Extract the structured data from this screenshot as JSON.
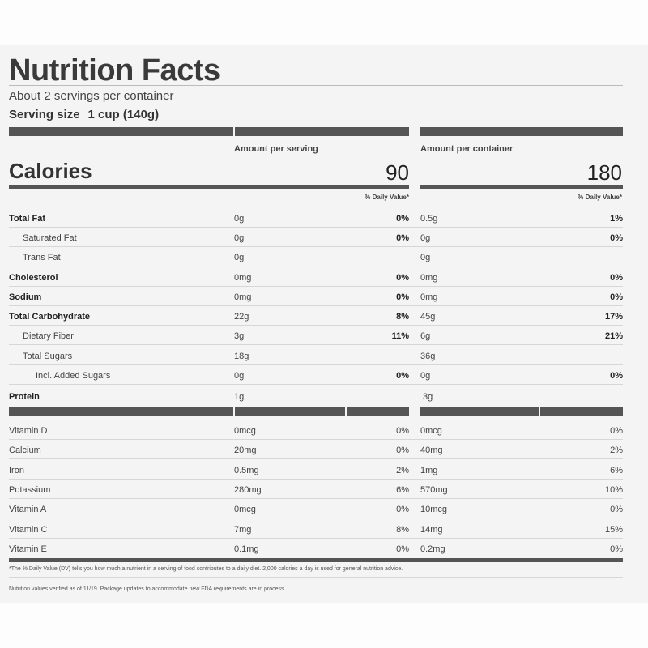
{
  "title": "Nutrition Facts",
  "servings_per_container": "About 2 servings per container",
  "serving_size": {
    "label": "Serving size",
    "value": "1 cup (140g)"
  },
  "columns": {
    "per_serving": "Amount per serving",
    "per_container": "Amount per container"
  },
  "calories": {
    "label": "Calories",
    "per_serving": "90",
    "per_container": "180"
  },
  "daily_value_header": "% Daily Value*",
  "nutrients": [
    {
      "name": "Total Fat",
      "amount": "0g",
      "dv": "0%",
      "amount_c": "0.5g",
      "dv_c": "1%"
    },
    {
      "name": "Saturated Fat",
      "amount": "0g",
      "dv": "0%",
      "amount_c": "0g",
      "dv_c": "0%"
    },
    {
      "name": "Trans Fat",
      "amount": "0g",
      "dv": "",
      "amount_c": "0g",
      "dv_c": ""
    },
    {
      "name": "Cholesterol",
      "amount": "0mg",
      "dv": "0%",
      "amount_c": "0mg",
      "dv_c": "0%"
    },
    {
      "name": "Sodium",
      "amount": "0mg",
      "dv": "0%",
      "amount_c": "0mg",
      "dv_c": "0%"
    },
    {
      "name": "Total Carbohydrate",
      "amount": "22g",
      "dv": "8%",
      "amount_c": "45g",
      "dv_c": "17%"
    },
    {
      "name": "Dietary Fiber",
      "amount": "3g",
      "dv": "11%",
      "amount_c": "6g",
      "dv_c": "21%"
    },
    {
      "name": "Total Sugars",
      "amount": "18g",
      "dv": "",
      "amount_c": "36g",
      "dv_c": ""
    },
    {
      "name": "Incl. Added Sugars",
      "amount": "0g",
      "dv": "0%",
      "amount_c": "0g",
      "dv_c": "0%"
    },
    {
      "name": "Protein",
      "amount": "1g",
      "dv": "",
      "amount_c": "3g",
      "dv_c": ""
    }
  ],
  "vitamins": [
    {
      "name": "Vitamin D",
      "amount": "0mcg",
      "dv": "0%",
      "amount_c": "0mcg",
      "dv_c": "0%"
    },
    {
      "name": "Calcium",
      "amount": "20mg",
      "dv": "0%",
      "amount_c": "40mg",
      "dv_c": "2%"
    },
    {
      "name": "Iron",
      "amount": "0.5mg",
      "dv": "2%",
      "amount_c": "1mg",
      "dv_c": "6%"
    },
    {
      "name": "Potassium",
      "amount": "280mg",
      "dv": "6%",
      "amount_c": "570mg",
      "dv_c": "10%"
    },
    {
      "name": "Vitamin A",
      "amount": "0mcg",
      "dv": "0%",
      "amount_c": "10mcg",
      "dv_c": "0%"
    },
    {
      "name": "Vitamin C",
      "amount": "7mg",
      "dv": "8%",
      "amount_c": "14mg",
      "dv_c": "15%"
    },
    {
      "name": "Vitamin E",
      "amount": "0.1mg",
      "dv": "0%",
      "amount_c": "0.2mg",
      "dv_c": "0%"
    }
  ],
  "footnote": "*The % Daily Value (DV) tells you how much a nutrient in a serving of food contributes to a daily diet. 2,000 calories a day is used for general nutrition advice.",
  "verified_note": "Nutrition values verified as of 11/19. Package updates to accommodate new FDA requirements are in process."
}
